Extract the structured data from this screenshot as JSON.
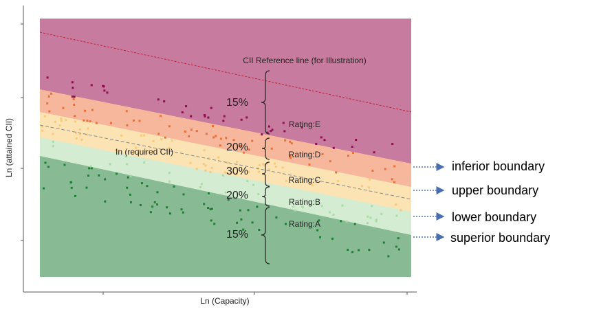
{
  "axes": {
    "x_label": "Ln (Capacity)",
    "y_label": "Ln (attained CII)"
  },
  "reference_line": "CII Reference line (for Illustration)",
  "required_line": "In (required CII)",
  "ratings": [
    "Rating:E",
    "Rating:D",
    "Rating:C",
    "Rating:B",
    "Rating:A"
  ],
  "percentages": [
    "15%",
    "20%",
    "30%",
    "20%",
    "15%"
  ],
  "boundaries": [
    "inferior boundary",
    "upper boundary",
    "lower boundary",
    "superior boundary"
  ]
}
